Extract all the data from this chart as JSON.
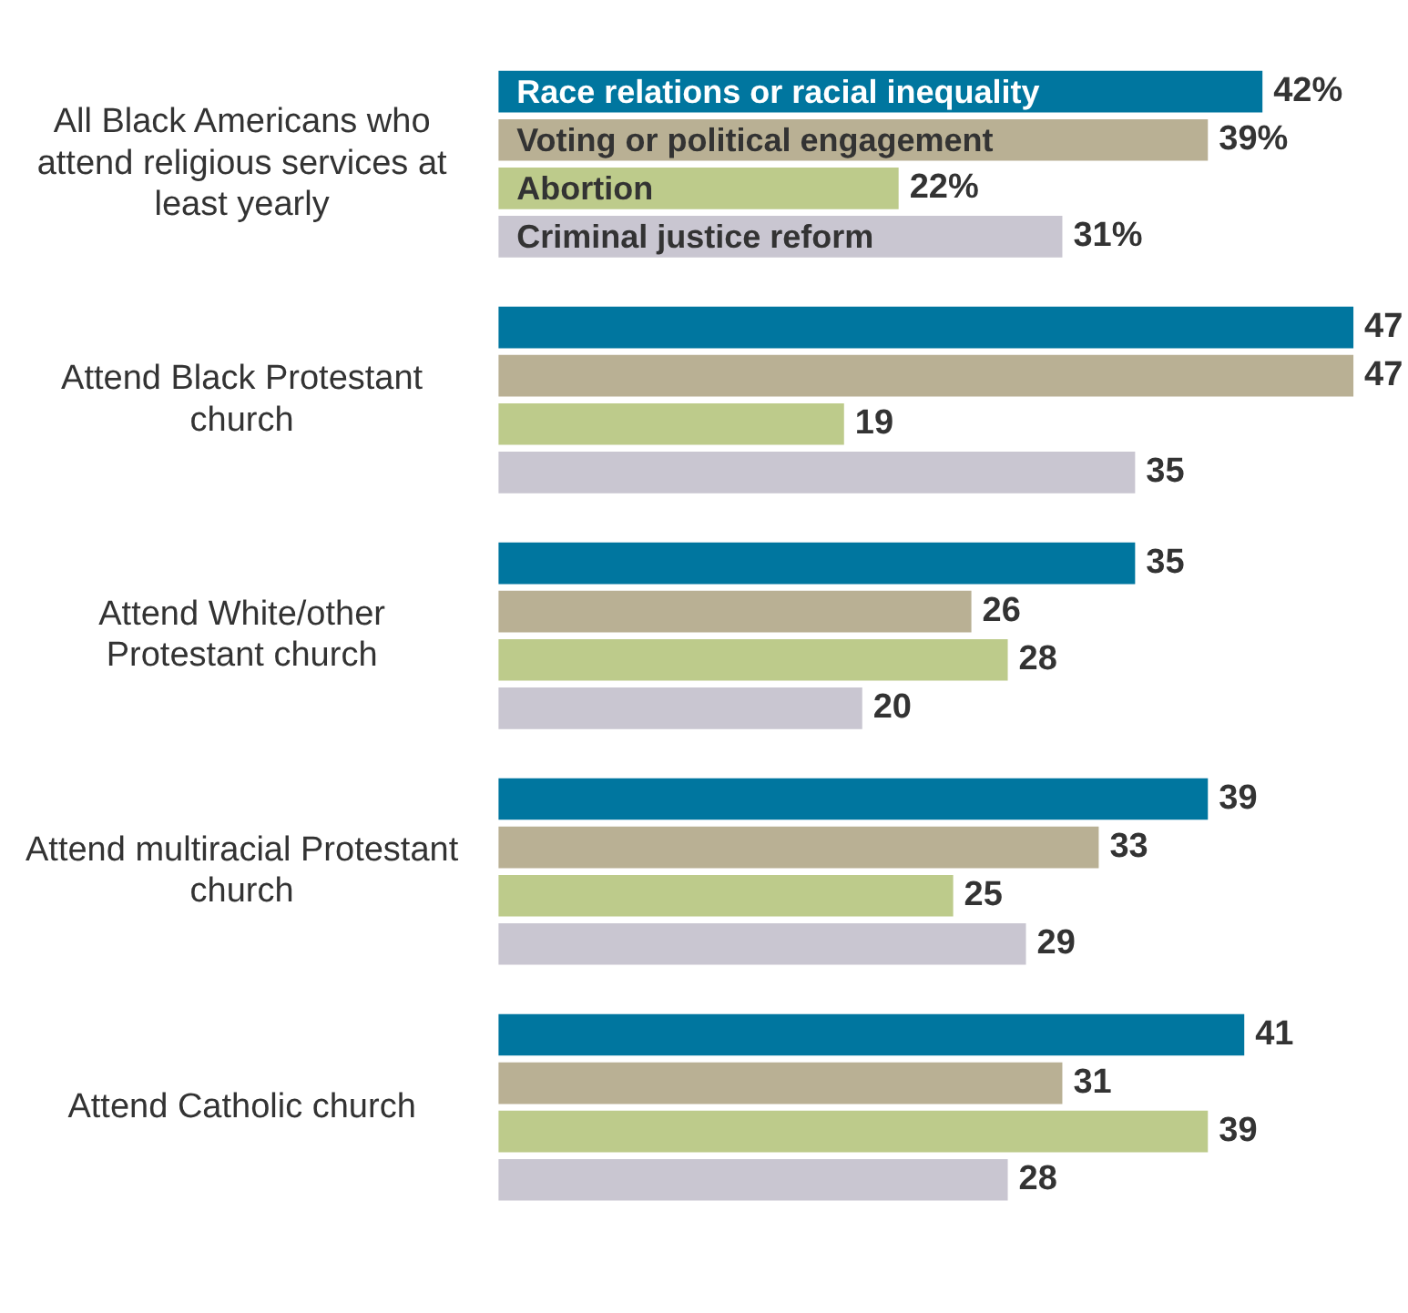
{
  "chart_data": {
    "type": "bar",
    "orientation": "horizontal",
    "categories": [
      "All Black Americans who attend religious services at least yearly",
      "Attend Black Protestant church",
      "Attend White/other Protestant church",
      "Attend multiracial Protestant church",
      "Attend Catholic church"
    ],
    "series": [
      {
        "name": "Race relations or racial inequality",
        "color": "#00769f",
        "values": [
          42,
          47,
          35,
          39,
          41
        ],
        "value_labels": [
          "42%",
          "47",
          "35",
          "39",
          "41"
        ]
      },
      {
        "name": "Voting or political engagement",
        "color": "#b9b094",
        "values": [
          39,
          47,
          26,
          33,
          31
        ],
        "value_labels": [
          "39%",
          "47",
          "26",
          "33",
          "31"
        ]
      },
      {
        "name": "Abortion",
        "color": "#bdcb8b",
        "values": [
          22,
          19,
          28,
          25,
          39
        ],
        "value_labels": [
          "22%",
          "19",
          "28",
          "25",
          "39"
        ]
      },
      {
        "name": "Criminal justice reform",
        "color": "#c9c6d1",
        "values": [
          31,
          35,
          20,
          29,
          28
        ],
        "value_labels": [
          "31%",
          "35",
          "20",
          "29",
          "28"
        ]
      }
    ],
    "tick_labels": "y",
    "legend": false
  }
}
